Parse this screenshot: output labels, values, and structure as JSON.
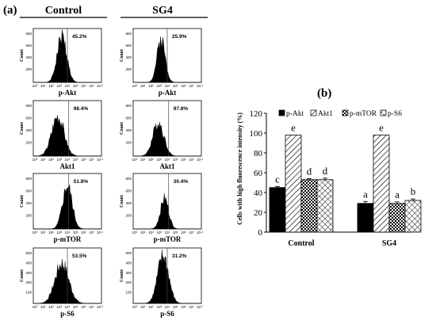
{
  "panel_a": {
    "letter": "(a)",
    "columns": [
      "Control",
      "SG4"
    ],
    "x_ticks": [
      "10⁰",
      "10¹",
      "10²",
      "10³",
      "10⁴",
      "10⁵",
      "10⁶",
      "10⁷",
      "10·²"
    ],
    "y_axis_label": "Count",
    "y_ticks_top": [
      "800",
      "600",
      "400",
      "200"
    ],
    "y_ticks_bottom": [
      "500",
      "400",
      "300",
      "200",
      "100"
    ],
    "histograms": [
      {
        "marker": "p-Akt",
        "control_pct": "45.2%",
        "sg4_pct": "25.9%"
      },
      {
        "marker": "Akt1",
        "control_pct": "98.4%",
        "sg4_pct": "97.8%"
      },
      {
        "marker": "p-mTOR",
        "control_pct": "51.8%",
        "sg4_pct": "30.4%"
      },
      {
        "marker": "p-S6",
        "control_pct": "53.5%",
        "sg4_pct": "31.2%"
      }
    ]
  },
  "chart_data": {
    "type": "bar",
    "panel_letter": "(b)",
    "categories": [
      "Control",
      "SG4"
    ],
    "ylabel": "Cells with high fluorescence intensity (%)",
    "xlabel": "",
    "ylim": [
      0,
      120
    ],
    "y_ticks": [
      0,
      20,
      40,
      60,
      80,
      100,
      120
    ],
    "legend_position": "top",
    "series": [
      {
        "name": "p-Akt",
        "values": [
          45,
          29
        ],
        "errors": [
          1,
          2
        ],
        "letters": [
          "c",
          "a"
        ],
        "pattern": "solid",
        "color": "#000000"
      },
      {
        "name": "Akt1",
        "values": [
          98,
          98
        ],
        "errors": [
          0,
          0
        ],
        "letters": [
          "e",
          "e"
        ],
        "pattern": "diagonal",
        "color": "#000000"
      },
      {
        "name": "p-mTOR",
        "values": [
          53,
          29
        ],
        "errors": [
          1,
          1.5
        ],
        "letters": [
          "d",
          "a"
        ],
        "pattern": "checker",
        "color": "#000000"
      },
      {
        "name": "p-S6",
        "values": [
          53,
          32
        ],
        "errors": [
          1.5,
          1.5
        ],
        "letters": [
          "d",
          "b"
        ],
        "pattern": "crosshatch",
        "color": "#000000"
      }
    ]
  }
}
